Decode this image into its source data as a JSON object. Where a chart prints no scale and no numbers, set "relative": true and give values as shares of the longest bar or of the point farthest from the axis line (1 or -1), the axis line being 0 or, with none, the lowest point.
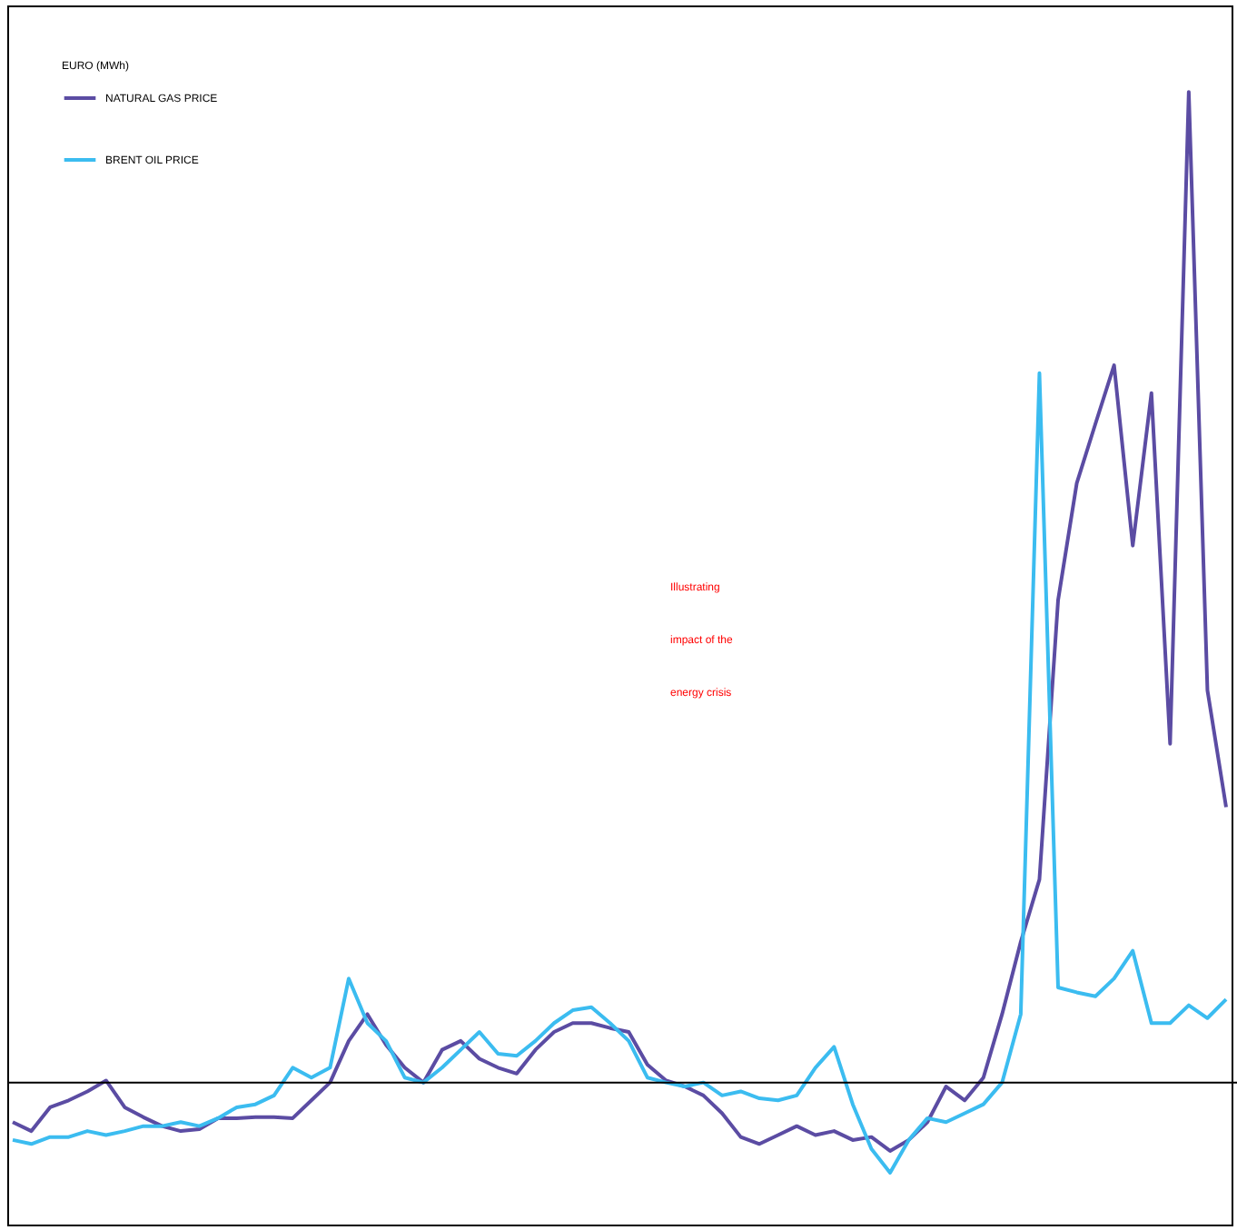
{
  "chart_data": {
    "type": "line",
    "relative": true,
    "legend_title": "EURO (MWh)",
    "legend": "top left",
    "categories": [
      null,
      null,
      null,
      null,
      null,
      null,
      null,
      null,
      null,
      null,
      null,
      null,
      null,
      null,
      null,
      null,
      null,
      null,
      null,
      null,
      null,
      null,
      null,
      null,
      null,
      null,
      null,
      null,
      null,
      null,
      null,
      null,
      null,
      null,
      null,
      null,
      null,
      null,
      null,
      null,
      null,
      null,
      null,
      null,
      null,
      null,
      null,
      null,
      null,
      null,
      null,
      null,
      null,
      null,
      null,
      null,
      null,
      null,
      null,
      null,
      null,
      null,
      null,
      null,
      null,
      null
    ],
    "series": [
      {
        "name": "NATURAL GAS PRICE",
        "color": "#5b4ca3",
        "values": [
          -0.04,
          -0.049,
          -0.025,
          -0.018,
          -0.009,
          0.002,
          -0.025,
          -0.035,
          -0.044,
          -0.049,
          -0.047,
          -0.036,
          -0.036,
          -0.035,
          -0.035,
          -0.036,
          -0.018,
          0,
          0.042,
          0.069,
          0.038,
          0.015,
          0,
          0.033,
          0.042,
          0.024,
          0.015,
          0.009,
          0.033,
          0.051,
          0.06,
          0.06,
          0.055,
          0.051,
          0.018,
          0.002,
          -0.004,
          -0.013,
          -0.031,
          -0.055,
          -0.062,
          -0.053,
          -0.044,
          -0.053,
          -0.049,
          -0.058,
          -0.055,
          -0.069,
          -0.058,
          -0.04,
          -0.004,
          -0.018,
          0.005,
          0.069,
          0.142,
          0.205,
          0.487,
          0.605,
          0.665,
          0.724,
          0.542,
          0.696,
          0.342,
          1,
          0.396,
          0.278
        ]
      },
      {
        "name": "BRENT OIL PRICE",
        "color": "#3bbcf0",
        "values": [
          -0.058,
          -0.062,
          -0.055,
          -0.055,
          -0.049,
          -0.053,
          -0.049,
          -0.044,
          -0.044,
          -0.04,
          -0.044,
          -0.036,
          -0.025,
          -0.022,
          -0.013,
          0.015,
          0.005,
          0.015,
          0.105,
          0.06,
          0.042,
          0.005,
          0,
          0.015,
          0.033,
          0.051,
          0.029,
          0.027,
          0.042,
          0.06,
          0.073,
          0.076,
          0.06,
          0.042,
          0.005,
          0,
          -0.004,
          0,
          -0.013,
          -0.009,
          -0.016,
          -0.018,
          -0.013,
          0.015,
          0.036,
          -0.022,
          -0.067,
          -0.091,
          -0.058,
          -0.036,
          -0.04,
          -0.031,
          -0.022,
          0,
          0.069,
          0.716,
          0.096,
          0.091,
          0.087,
          0.105,
          0.133,
          0.06,
          0.06,
          0.078,
          0.065,
          0.084
        ]
      }
    ],
    "annotations": [
      "Illustrating",
      "impact of the",
      "energy crisis"
    ]
  }
}
